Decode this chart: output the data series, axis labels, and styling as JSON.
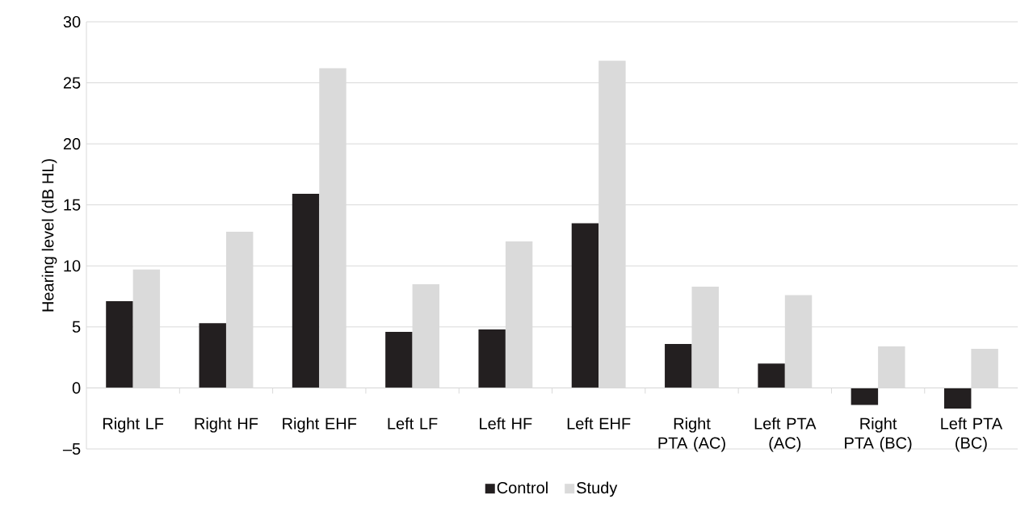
{
  "chart_data": {
    "type": "bar",
    "ylabel": "Hearing level (dB HL)",
    "categories": [
      "Right LF",
      "Right HF",
      "Right EHF",
      "Left LF",
      "Left HF",
      "Left EHF",
      "Right PTA (AC)",
      "Left PTA (AC)",
      "Right PTA (BC)",
      "Left PTA (BC)"
    ],
    "series": [
      {
        "name": "Control",
        "color": "#231f20",
        "values": [
          7.1,
          5.3,
          15.9,
          4.6,
          4.8,
          13.5,
          3.6,
          2.0,
          -1.4,
          -1.7
        ]
      },
      {
        "name": "Study",
        "color": "#dadada",
        "values": [
          9.7,
          12.8,
          26.2,
          8.5,
          12.0,
          26.8,
          8.3,
          7.6,
          3.4,
          3.2
        ]
      }
    ],
    "ylim": [
      -5,
      30
    ],
    "yticks": [
      {
        "value": -5,
        "label": "–5"
      },
      0,
      5,
      10,
      15,
      20,
      25,
      30
    ],
    "grid": "y",
    "legend": "bottom"
  }
}
